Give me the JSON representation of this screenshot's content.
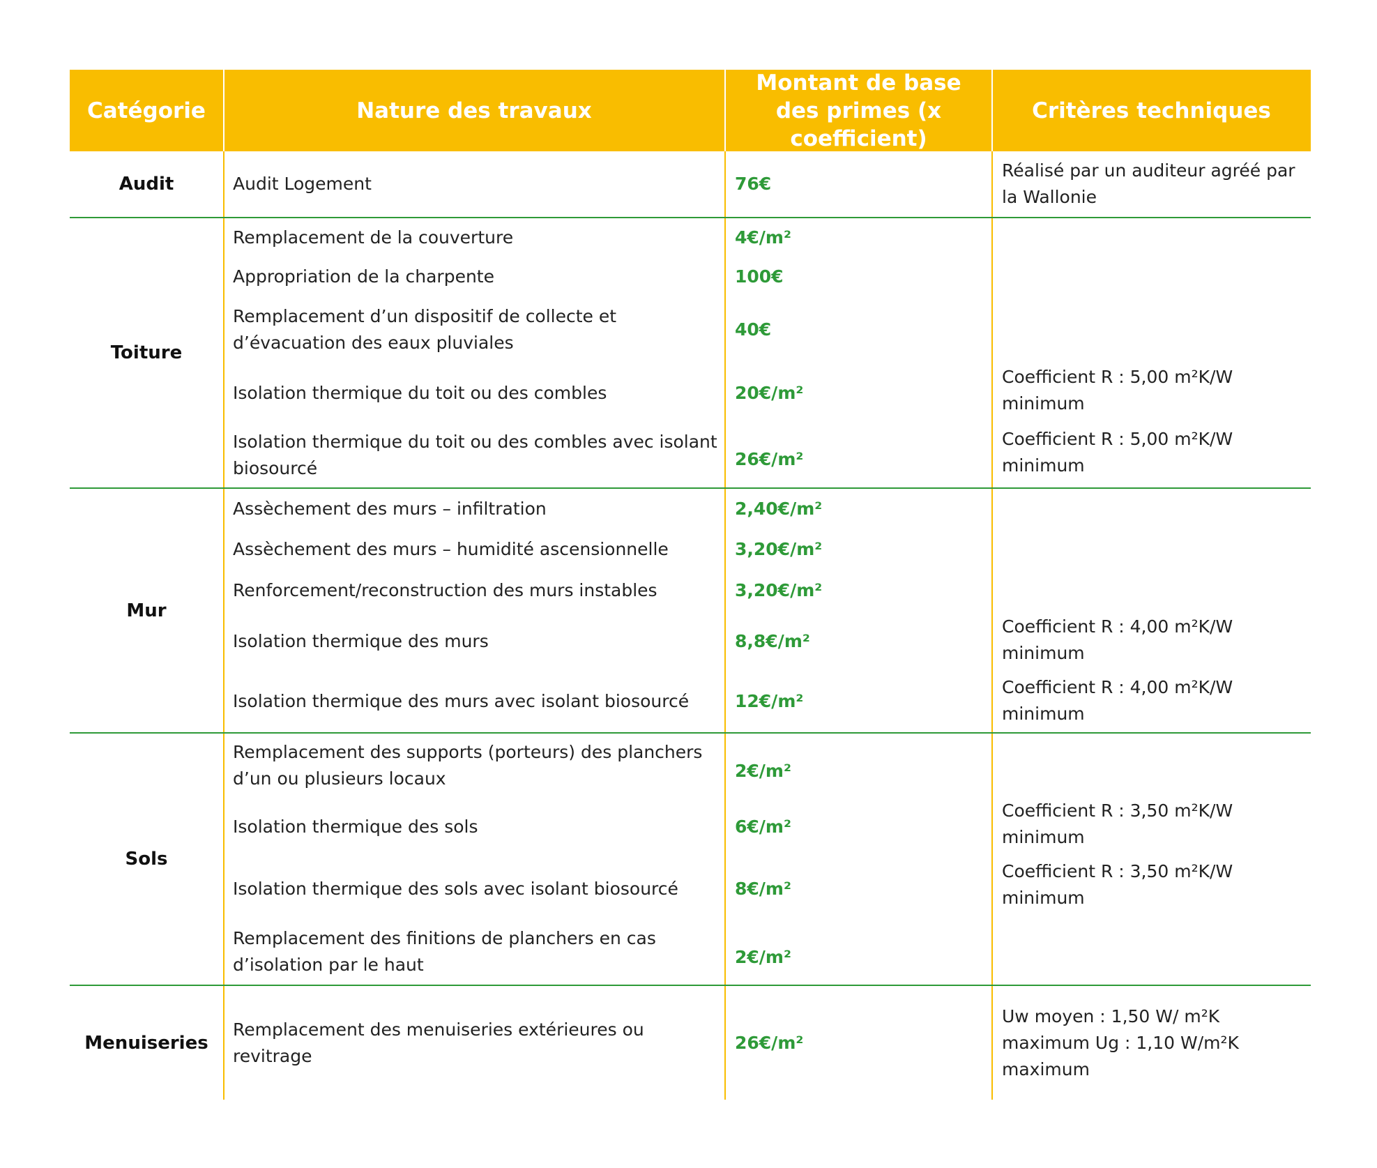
{
  "header": {
    "category": "Catégorie",
    "works": "Nature des travaux",
    "amount": "Montant de base des primes (x coefficient)",
    "criteria": "Critères techniques"
  },
  "colors": {
    "header_bg": "#f9bd00",
    "row_separator": "#2e9a38",
    "amount_text": "#2e9a38"
  },
  "sections": {
    "audit": {
      "category": "Audit",
      "rows": [
        {
          "work": "Audit Logement",
          "amount": "76€",
          "criteria": "Réalisé par un auditeur agréé par la Wallonie"
        }
      ]
    },
    "toiture": {
      "category": "Toiture",
      "rows": [
        {
          "work": "Remplacement de la couverture",
          "amount": "4€/m²",
          "criteria": ""
        },
        {
          "work": "Appropriation de la charpente",
          "amount": "100€",
          "criteria": ""
        },
        {
          "work": "Remplacement d’un dispositif de collecte et d’évacuation des eaux pluviales",
          "amount": "40€",
          "criteria": ""
        },
        {
          "work": "Isolation thermique du toit ou des combles",
          "amount": "20€/m²",
          "criteria": "Coefficient R : 5,00 m²K/W minimum"
        },
        {
          "work": "Isolation thermique du toit ou des combles avec isolant biosourcé",
          "amount": "26€/m²",
          "criteria": "Coefficient R : 5,00 m²K/W minimum"
        }
      ]
    },
    "mur": {
      "category": "Mur",
      "rows": [
        {
          "work": "Assèchement des murs – infiltration",
          "amount": "2,40€/m²",
          "criteria": ""
        },
        {
          "work": "Assèchement des murs – humidité ascensionnelle",
          "amount": "3,20€/m²",
          "criteria": ""
        },
        {
          "work": "Renforcement/reconstruction des murs instables",
          "amount": "3,20€/m²",
          "criteria": ""
        },
        {
          "work": "Isolation thermique des murs",
          "amount": "8,8€/m²",
          "criteria": "Coefficient R : 4,00 m²K/W minimum"
        },
        {
          "work": "Isolation thermique des murs avec isolant biosourcé",
          "amount": "12€/m²",
          "criteria": "Coefficient R : 4,00 m²K/W minimum"
        }
      ]
    },
    "sols": {
      "category": "Sols",
      "rows": [
        {
          "work": "Remplacement des supports (porteurs) des planchers d’un ou plusieurs locaux",
          "amount": "2€/m²",
          "criteria": ""
        },
        {
          "work": "Isolation thermique des sols",
          "amount": "6€/m²",
          "criteria": "Coefficient R : 3,50 m²K/W minimum"
        },
        {
          "work": "Isolation thermique des sols avec isolant biosourcé",
          "amount": "8€/m²",
          "criteria": "Coefficient R : 3,50 m²K/W minimum"
        },
        {
          "work": "Remplacement des finitions de planchers en cas d’isolation par le haut",
          "amount": "2€/m²",
          "criteria": ""
        }
      ]
    },
    "menuiseries": {
      "category": "Menuiseries",
      "rows": [
        {
          "work": "Remplacement des menuiseries extérieures ou revitrage",
          "amount": "26€/m²",
          "criteria": "Uw moyen : 1,50 W/ m²K maximum Ug : 1,10 W/m²K maximum"
        }
      ]
    }
  }
}
